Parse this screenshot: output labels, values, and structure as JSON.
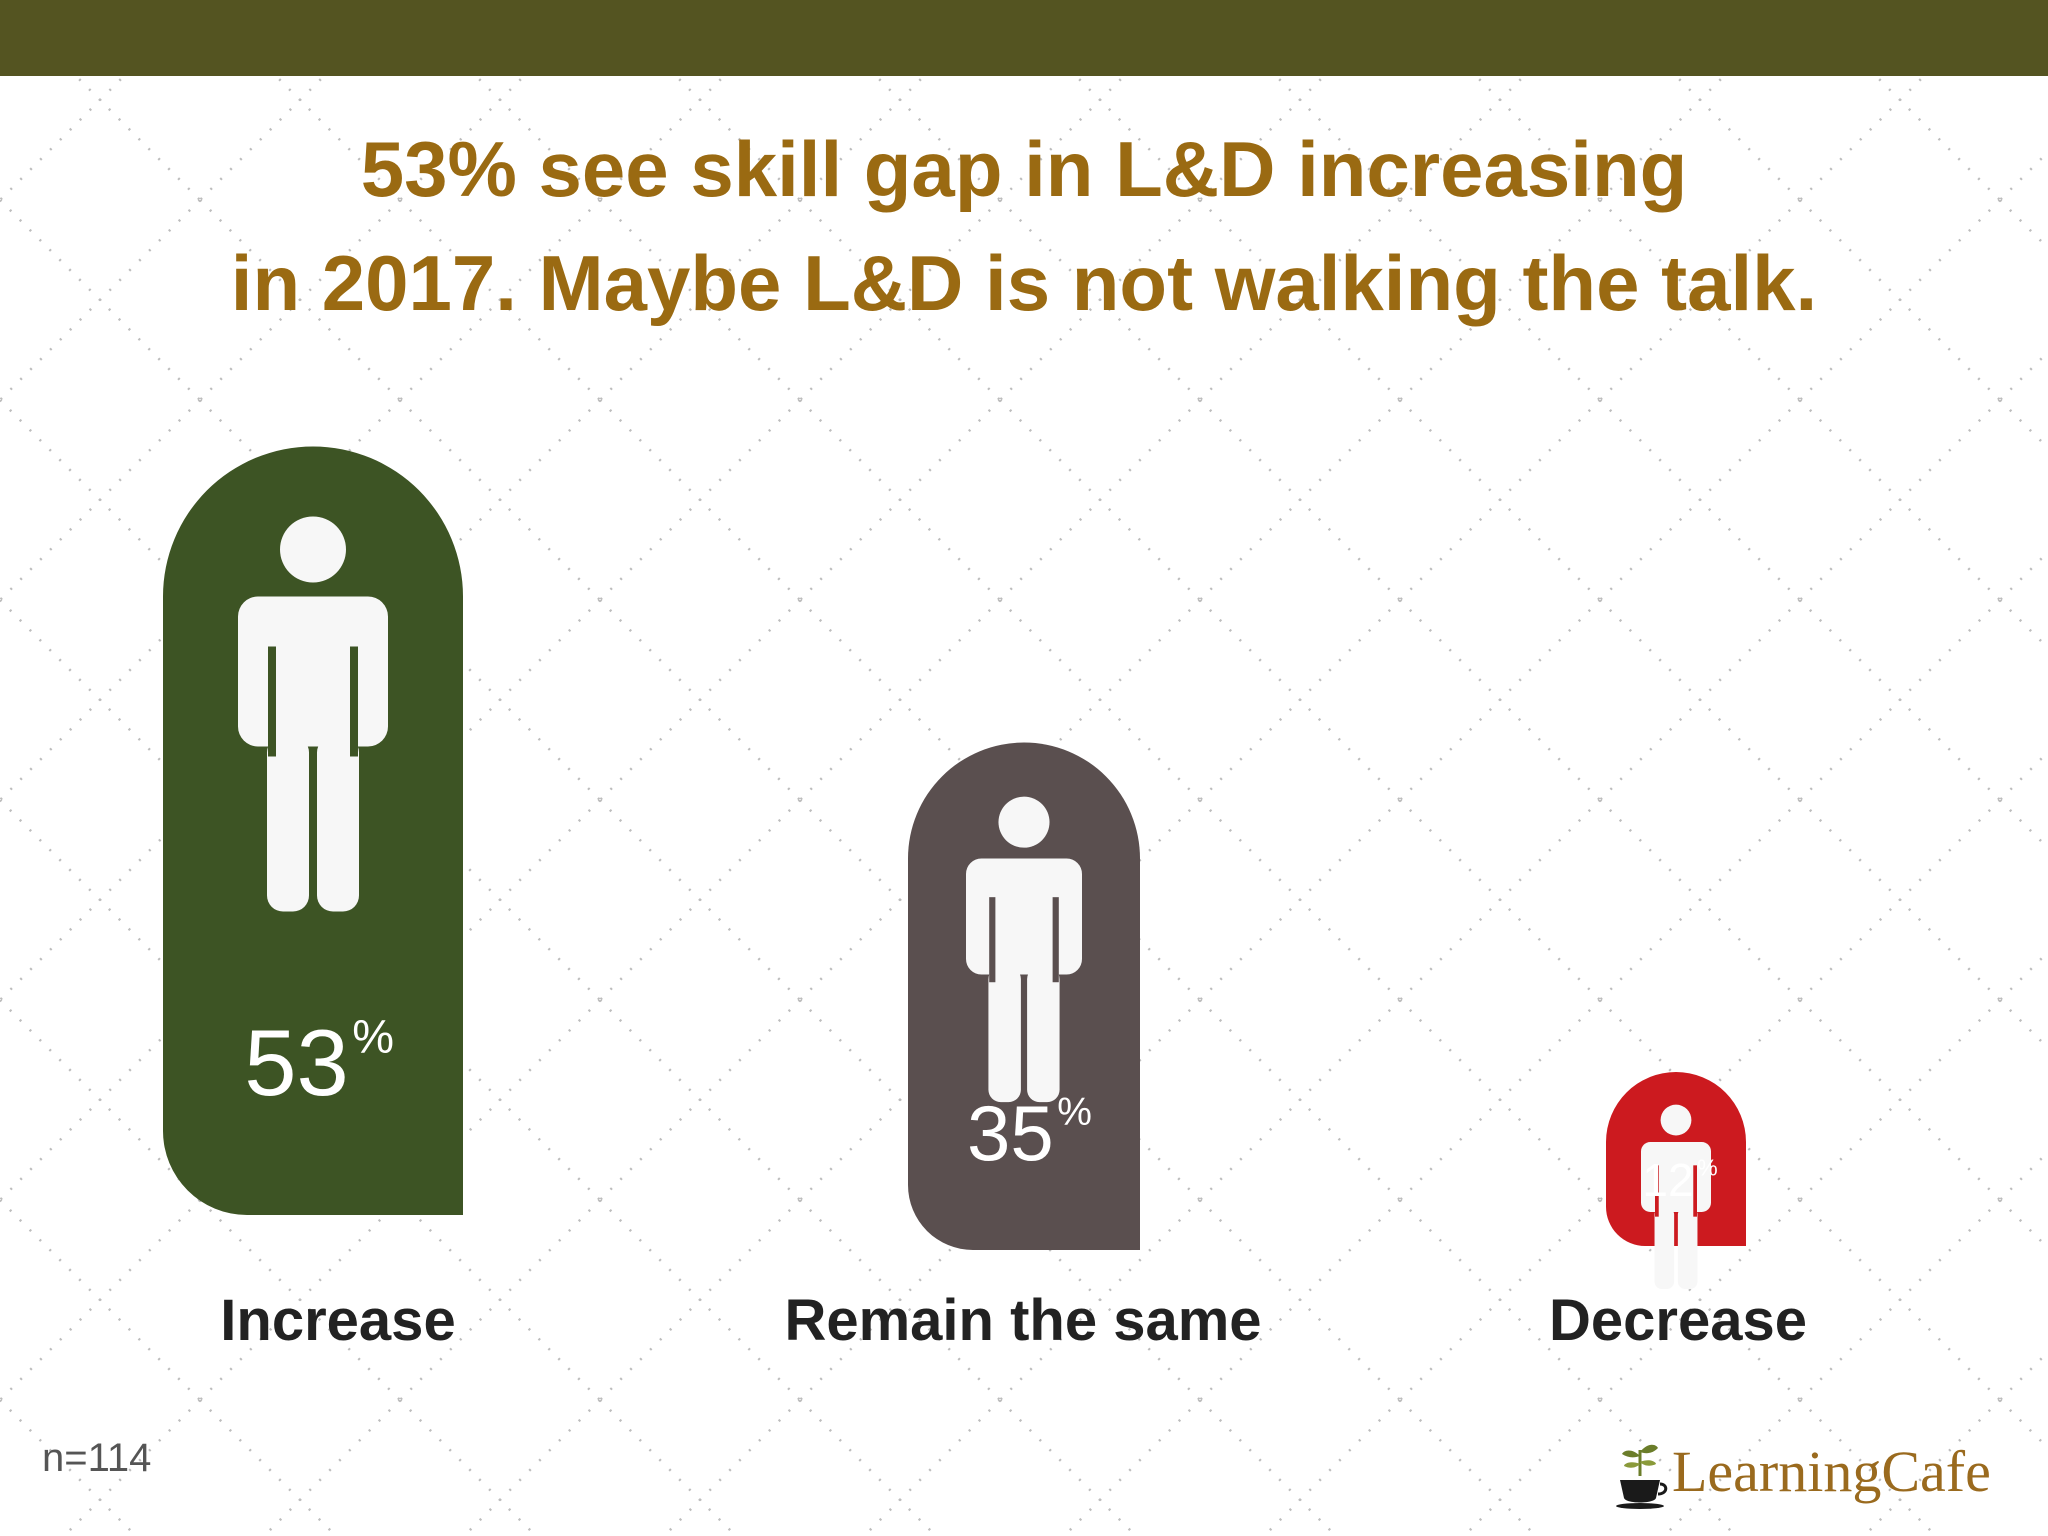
{
  "colors": {
    "top_bar": "#545421",
    "title": "#9a6a12",
    "labels": "#222222",
    "figure": "#f7f7f7"
  },
  "title_lines": [
    "53% see skill gap in L&D increasing",
    "in 2017. Maybe L&D is not walking the talk."
  ],
  "chart_data": {
    "type": "bar",
    "categories": [
      "Increase",
      "Remain the same",
      "Decrease"
    ],
    "values": [
      53,
      35,
      12
    ],
    "value_labels": [
      "53",
      "35",
      "12"
    ],
    "unit": "%",
    "colors": [
      "#3d5424",
      "#5a4f4f",
      "#cc1a1f"
    ],
    "icon": "person-icon"
  },
  "footnote": "n=114",
  "logo": {
    "text": "LearningCafe",
    "icon": "coffee-cup-plant-icon"
  }
}
